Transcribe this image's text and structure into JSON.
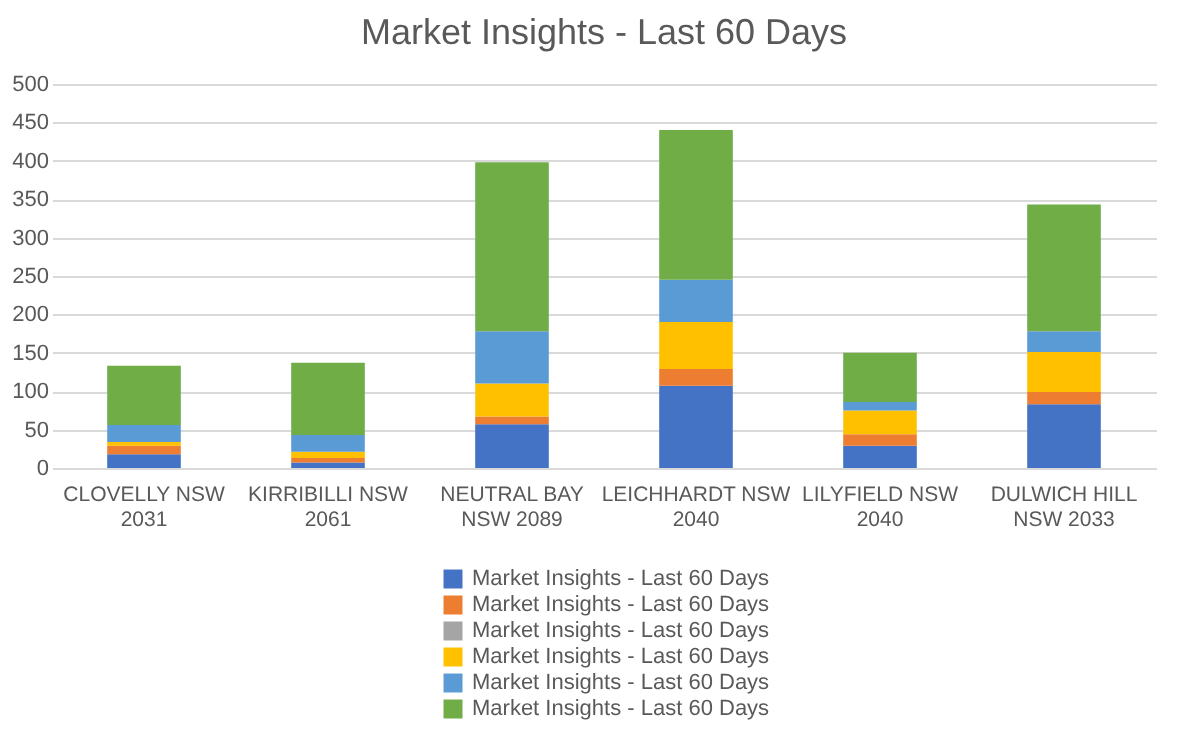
{
  "chart_data": {
    "type": "bar",
    "title": "Market Insights - Last 60 Days",
    "stacked": true,
    "categories": [
      "CLOVELLY NSW 2031",
      "KIRRIBILLI NSW 2061",
      "NEUTRAL BAY NSW 2089",
      "LEICHHARDT NSW 2040",
      "LILYFIELD NSW 2040",
      "DULWICH HILL NSW 2033"
    ],
    "series": [
      {
        "name": "Market Insights - Last 60 Days",
        "color": "#4472c4",
        "values": [
          18,
          7,
          57,
          107,
          29,
          83
        ]
      },
      {
        "name": "Market Insights - Last 60 Days",
        "color": "#ed7d31",
        "values": [
          11,
          6,
          10,
          22,
          15,
          16
        ]
      },
      {
        "name": "Market Insights - Last 60 Days",
        "color": "#a5a5a5",
        "values": [
          0,
          0,
          0,
          0,
          0,
          0
        ]
      },
      {
        "name": "Market Insights - Last 60 Days",
        "color": "#ffc000",
        "values": [
          5,
          8,
          43,
          61,
          31,
          52
        ]
      },
      {
        "name": "Market Insights - Last 60 Days",
        "color": "#5b9bd5",
        "values": [
          22,
          22,
          68,
          55,
          11,
          27
        ]
      },
      {
        "name": "Market Insights - Last 60 Days",
        "color": "#70ad47",
        "values": [
          77,
          94,
          220,
          195,
          64,
          165
        ]
      }
    ],
    "ylim": [
      0,
      500
    ],
    "yticks": [
      0,
      50,
      100,
      150,
      200,
      250,
      300,
      350,
      400,
      450,
      500
    ],
    "grid": "y",
    "legend": "bottom"
  }
}
